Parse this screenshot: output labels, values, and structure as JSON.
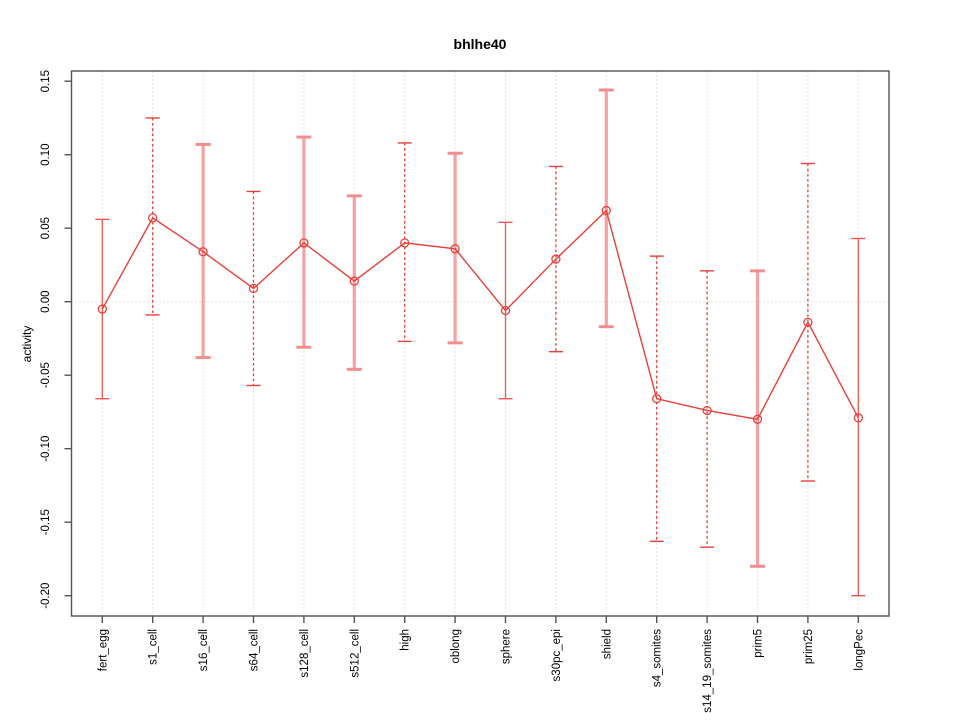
{
  "chart_data": {
    "type": "line",
    "title": "bhlhe40",
    "xlabel": "",
    "ylabel": "activity",
    "legend": "none",
    "grid": {
      "vertical_at_categories": true,
      "horizontal_at_zero": true,
      "style": "dotted-lightgray"
    },
    "yticks": [
      0.15,
      0.1,
      0.05,
      0.0,
      -0.05,
      -0.1,
      -0.15,
      -0.2
    ],
    "ylim": [
      -0.216,
      0.158
    ],
    "marker": "open-circle",
    "categories": [
      "fert_egg",
      "s1_cell",
      "s16_cell",
      "s64_cell",
      "s128_cell",
      "s512_cell",
      "high",
      "oblong",
      "sphere",
      "s30pc_epi",
      "shield",
      "s4_somites",
      "s14_19_somites",
      "prim5",
      "prim25",
      "longPec"
    ],
    "series": [
      {
        "name": "activity",
        "values": [
          -0.005,
          0.057,
          0.034,
          0.009,
          0.04,
          0.014,
          0.04,
          0.036,
          -0.006,
          0.029,
          0.062,
          -0.066,
          -0.074,
          -0.08,
          -0.014,
          -0.079
        ]
      }
    ],
    "error_bars": {
      "low": [
        -0.066,
        -0.009,
        -0.038,
        -0.057,
        -0.031,
        -0.046,
        -0.027,
        -0.028,
        -0.066,
        -0.034,
        -0.017,
        -0.163,
        -0.167,
        -0.18,
        -0.122,
        -0.2
      ],
      "high": [
        0.056,
        0.125,
        0.107,
        0.075,
        0.112,
        0.072,
        0.108,
        0.101,
        0.054,
        0.092,
        0.144,
        0.031,
        0.021,
        0.021,
        0.094,
        0.043
      ],
      "styles": [
        "thin",
        "dashed",
        "thick",
        "dashed",
        "thick",
        "thick",
        "dashed",
        "thick",
        "thin",
        "dashed",
        "thick",
        "dashed",
        "dashed",
        "thick",
        "dashed",
        "thin"
      ]
    },
    "colors": {
      "line": "#e8413c",
      "marker": "#e8413c",
      "bar_thin": "#ee5550",
      "bar_dashed": "#e8413c",
      "bar_thick": "#f6a2a2",
      "bar_thick_cap": "#f18f8f",
      "grid": "#d9d9d9",
      "axis": "#545454",
      "tick_text": "#000000"
    }
  }
}
